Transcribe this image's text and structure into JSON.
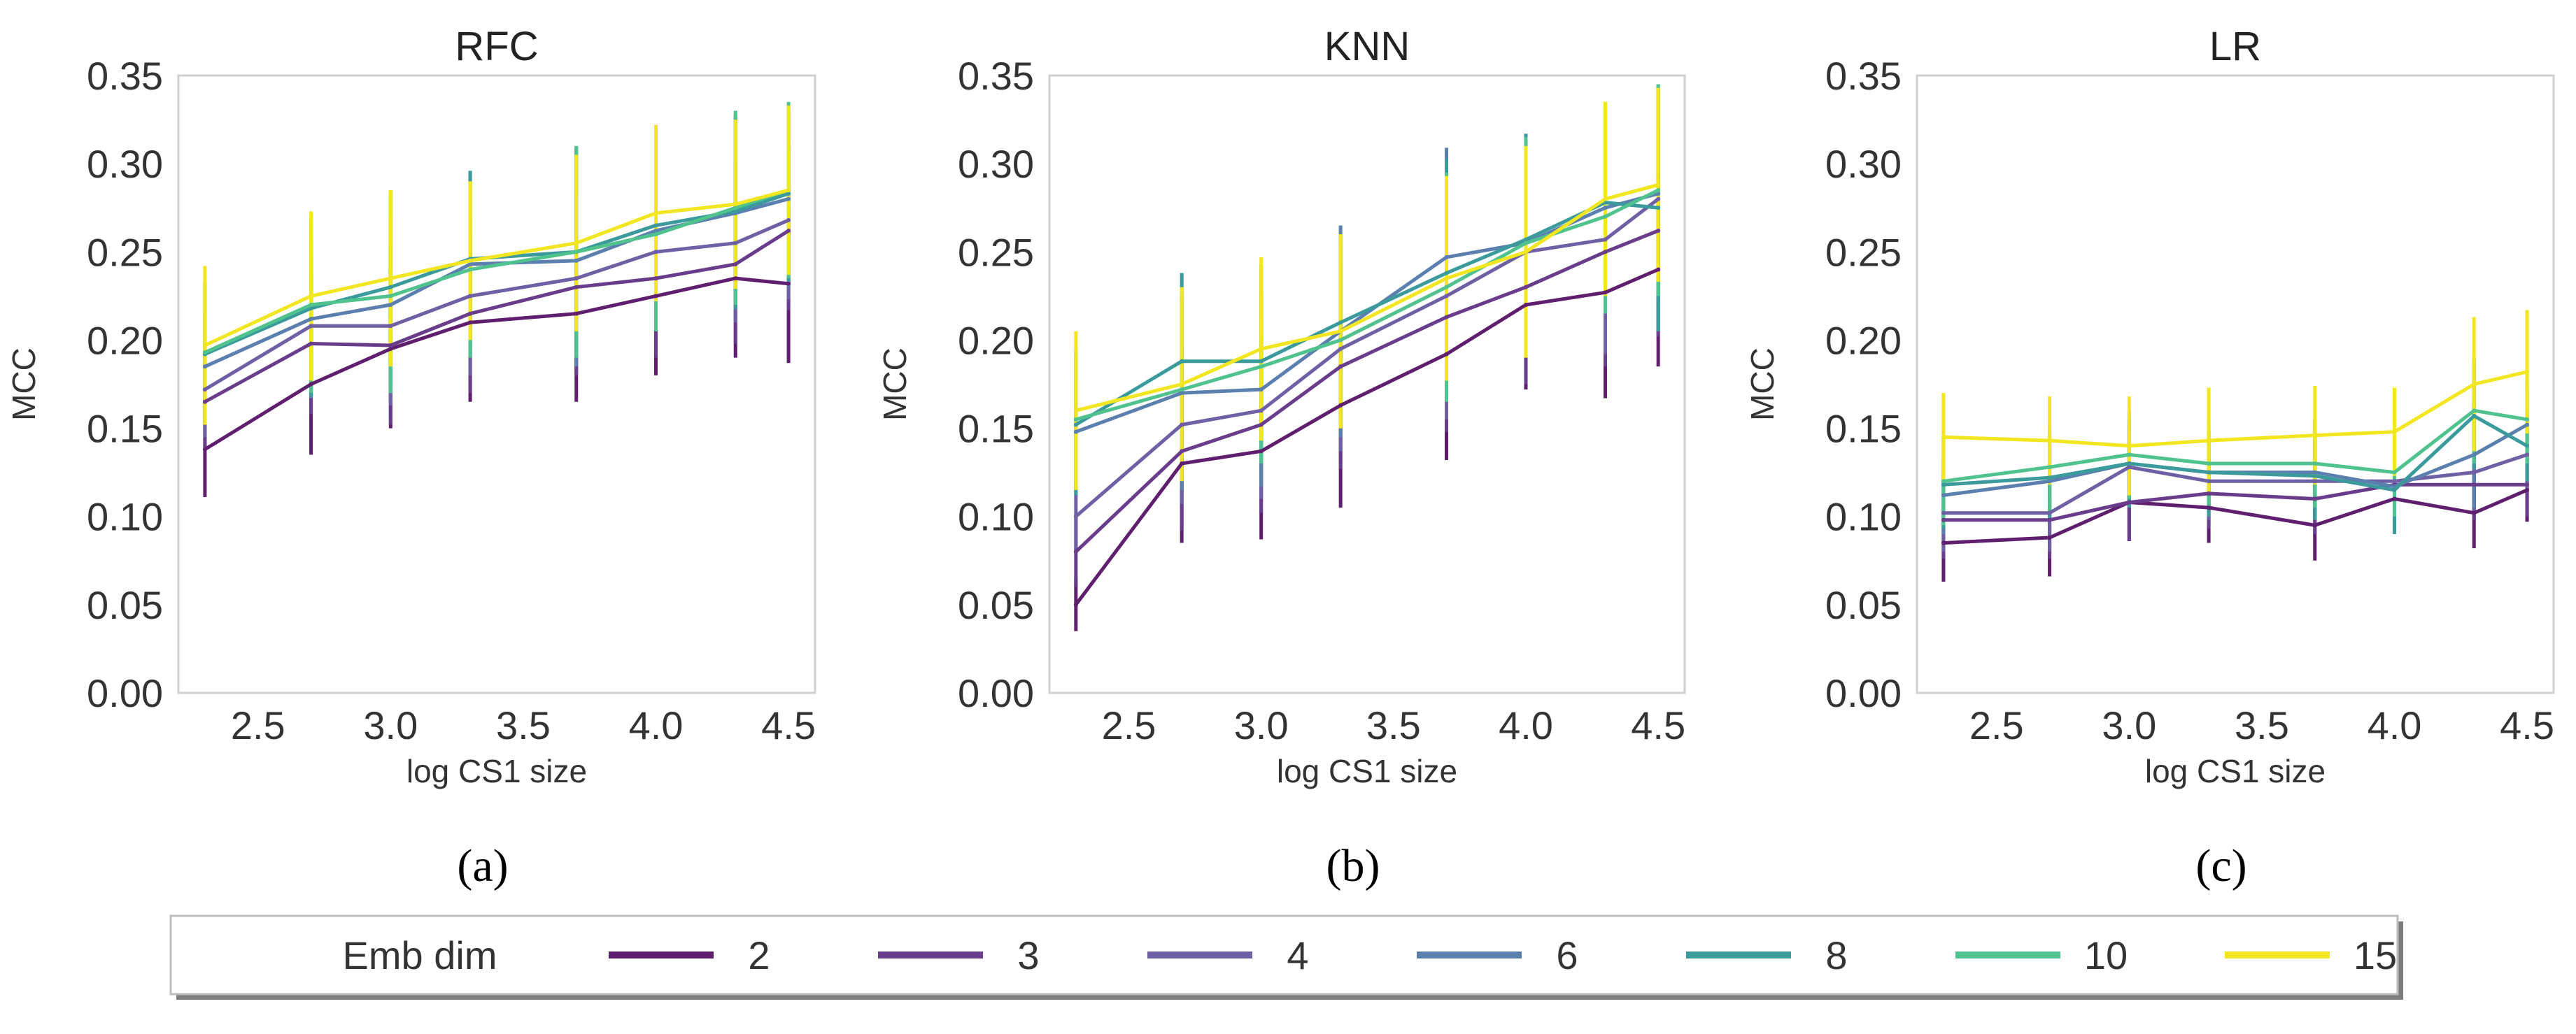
{
  "chart_data": [
    {
      "type": "line",
      "panel_label": "(a)",
      "title": "RFC",
      "xlabel": "log CS1 size",
      "ylabel": "MCC",
      "xlim": [
        2.2,
        4.6
      ],
      "ylim": [
        0.0,
        0.35
      ],
      "x_ticks": [
        "2.5",
        "3.0",
        "3.5",
        "4.0",
        "4.5"
      ],
      "y_ticks": [
        "0.00",
        "0.05",
        "0.10",
        "0.15",
        "0.20",
        "0.25",
        "0.30",
        "0.35"
      ],
      "x": [
        2.3,
        2.7,
        3.0,
        3.3,
        3.7,
        4.0,
        4.3,
        4.5
      ],
      "series": [
        {
          "name": "2",
          "values": [
            0.138,
            0.175,
            0.195,
            0.21,
            0.215,
            0.225,
            0.235,
            0.232
          ],
          "err": [
            0.027,
            0.04,
            0.045,
            0.045,
            0.05,
            0.045,
            0.045,
            0.045
          ]
        },
        {
          "name": "3",
          "values": [
            0.165,
            0.198,
            0.197,
            0.215,
            0.23,
            0.235,
            0.243,
            0.262
          ],
          "err": [
            0.027,
            0.04,
            0.045,
            0.045,
            0.05,
            0.045,
            0.045,
            0.045
          ]
        },
        {
          "name": "4",
          "values": [
            0.172,
            0.208,
            0.208,
            0.225,
            0.235,
            0.25,
            0.255,
            0.268
          ],
          "err": [
            0.027,
            0.04,
            0.045,
            0.045,
            0.05,
            0.045,
            0.045,
            0.045
          ]
        },
        {
          "name": "6",
          "values": [
            0.185,
            0.212,
            0.22,
            0.243,
            0.245,
            0.262,
            0.272,
            0.28
          ],
          "err": [
            0.03,
            0.045,
            0.05,
            0.05,
            0.06,
            0.055,
            0.055,
            0.05
          ]
        },
        {
          "name": "8",
          "values": [
            0.192,
            0.218,
            0.23,
            0.246,
            0.25,
            0.265,
            0.273,
            0.283
          ],
          "err": [
            0.04,
            0.05,
            0.055,
            0.05,
            0.06,
            0.055,
            0.055,
            0.05
          ]
        },
        {
          "name": "10",
          "values": [
            0.193,
            0.22,
            0.225,
            0.24,
            0.25,
            0.26,
            0.275,
            0.285
          ],
          "err": [
            0.04,
            0.05,
            0.055,
            0.05,
            0.06,
            0.055,
            0.055,
            0.05
          ]
        },
        {
          "name": "15",
          "values": [
            0.197,
            0.225,
            0.235,
            0.245,
            0.255,
            0.272,
            0.277,
            0.285
          ],
          "err": [
            0.045,
            0.048,
            0.05,
            0.045,
            0.05,
            0.05,
            0.048,
            0.048
          ]
        }
      ]
    },
    {
      "type": "line",
      "panel_label": "(b)",
      "title": "KNN",
      "xlabel": "log CS1 size",
      "ylabel": "MCC",
      "xlim": [
        2.2,
        4.6
      ],
      "ylim": [
        0.0,
        0.35
      ],
      "x_ticks": [
        "2.5",
        "3.0",
        "3.5",
        "4.0",
        "4.5"
      ],
      "y_ticks": [
        "0.00",
        "0.05",
        "0.10",
        "0.15",
        "0.20",
        "0.25",
        "0.30",
        "0.35"
      ],
      "x": [
        2.3,
        2.7,
        3.0,
        3.3,
        3.7,
        4.0,
        4.3,
        4.5
      ],
      "series": [
        {
          "name": "2",
          "values": [
            0.05,
            0.13,
            0.137,
            0.163,
            0.192,
            0.22,
            0.227,
            0.24
          ],
          "err": [
            0.015,
            0.045,
            0.05,
            0.058,
            0.06,
            0.048,
            0.06,
            0.055
          ]
        },
        {
          "name": "3",
          "values": [
            0.08,
            0.137,
            0.152,
            0.185,
            0.213,
            0.23,
            0.25,
            0.262
          ],
          "err": [
            0.02,
            0.045,
            0.05,
            0.058,
            0.065,
            0.055,
            0.065,
            0.06
          ]
        },
        {
          "name": "4",
          "values": [
            0.1,
            0.152,
            0.16,
            0.195,
            0.225,
            0.25,
            0.257,
            0.28
          ],
          "err": [
            0.02,
            0.045,
            0.05,
            0.058,
            0.07,
            0.06,
            0.065,
            0.06
          ]
        },
        {
          "name": "6",
          "values": [
            0.148,
            0.17,
            0.172,
            0.205,
            0.247,
            0.255,
            0.275,
            0.283
          ],
          "err": [
            0.03,
            0.055,
            0.055,
            0.06,
            0.062,
            0.06,
            0.06,
            0.06
          ]
        },
        {
          "name": "8",
          "values": [
            0.152,
            0.188,
            0.188,
            0.21,
            0.238,
            0.257,
            0.278,
            0.275
          ],
          "err": [
            0.04,
            0.05,
            0.055,
            0.05,
            0.065,
            0.06,
            0.055,
            0.07
          ]
        },
        {
          "name": "10",
          "values": [
            0.155,
            0.172,
            0.185,
            0.2,
            0.23,
            0.255,
            0.27,
            0.285
          ],
          "err": [
            0.04,
            0.05,
            0.055,
            0.05,
            0.065,
            0.06,
            0.055,
            0.06
          ]
        },
        {
          "name": "15",
          "values": [
            0.16,
            0.175,
            0.195,
            0.205,
            0.235,
            0.25,
            0.28,
            0.288
          ],
          "err": [
            0.045,
            0.055,
            0.052,
            0.055,
            0.058,
            0.06,
            0.055,
            0.055
          ]
        }
      ]
    },
    {
      "type": "line",
      "panel_label": "(c)",
      "title": "LR",
      "xlabel": "log CS1 size",
      "ylabel": "MCC",
      "xlim": [
        2.2,
        4.6
      ],
      "ylim": [
        0.0,
        0.35
      ],
      "x_ticks": [
        "2.5",
        "3.0",
        "3.5",
        "4.0",
        "4.5"
      ],
      "y_ticks": [
        "0.00",
        "0.05",
        "0.10",
        "0.15",
        "0.20",
        "0.25",
        "0.30",
        "0.35"
      ],
      "x": [
        2.3,
        2.7,
        3.0,
        3.3,
        3.7,
        4.0,
        4.3,
        4.5
      ],
      "series": [
        {
          "name": "2",
          "values": [
            0.085,
            0.088,
            0.108,
            0.105,
            0.095,
            0.11,
            0.102,
            0.115
          ],
          "err": [
            0.022,
            0.022,
            0.022,
            0.02,
            0.02,
            0.02,
            0.02,
            0.018
          ]
        },
        {
          "name": "3",
          "values": [
            0.098,
            0.098,
            0.108,
            0.113,
            0.11,
            0.118,
            0.118,
            0.118
          ],
          "err": [
            0.022,
            0.022,
            0.022,
            0.02,
            0.02,
            0.02,
            0.02,
            0.018
          ]
        },
        {
          "name": "4",
          "values": [
            0.102,
            0.102,
            0.128,
            0.12,
            0.12,
            0.12,
            0.125,
            0.135
          ],
          "err": [
            0.022,
            0.022,
            0.022,
            0.022,
            0.022,
            0.02,
            0.022,
            0.02
          ]
        },
        {
          "name": "6",
          "values": [
            0.112,
            0.12,
            0.13,
            0.125,
            0.125,
            0.117,
            0.135,
            0.152
          ],
          "err": [
            0.022,
            0.022,
            0.022,
            0.022,
            0.022,
            0.022,
            0.03,
            0.02
          ]
        },
        {
          "name": "8",
          "values": [
            0.118,
            0.122,
            0.13,
            0.125,
            0.123,
            0.115,
            0.157,
            0.14
          ],
          "err": [
            0.025,
            0.025,
            0.025,
            0.025,
            0.025,
            0.025,
            0.03,
            0.02
          ]
        },
        {
          "name": "10",
          "values": [
            0.12,
            0.128,
            0.135,
            0.13,
            0.13,
            0.125,
            0.16,
            0.155
          ],
          "err": [
            0.025,
            0.025,
            0.025,
            0.025,
            0.025,
            0.025,
            0.03,
            0.025
          ]
        },
        {
          "name": "15",
          "values": [
            0.145,
            0.143,
            0.14,
            0.143,
            0.146,
            0.148,
            0.175,
            0.182
          ],
          "err": [
            0.025,
            0.025,
            0.028,
            0.03,
            0.028,
            0.025,
            0.038,
            0.035
          ]
        }
      ]
    }
  ],
  "legend": {
    "title": "Emb dim",
    "placement": "bottom",
    "entries": [
      {
        "label": "2",
        "color": "#5f1f6e"
      },
      {
        "label": "3",
        "color": "#6a3c8c"
      },
      {
        "label": "4",
        "color": "#6f5fa4"
      },
      {
        "label": "6",
        "color": "#5b7fae"
      },
      {
        "label": "8",
        "color": "#3a9a9c"
      },
      {
        "label": "10",
        "color": "#4fc28e"
      },
      {
        "label": "15",
        "color": "#f2e620"
      }
    ]
  }
}
